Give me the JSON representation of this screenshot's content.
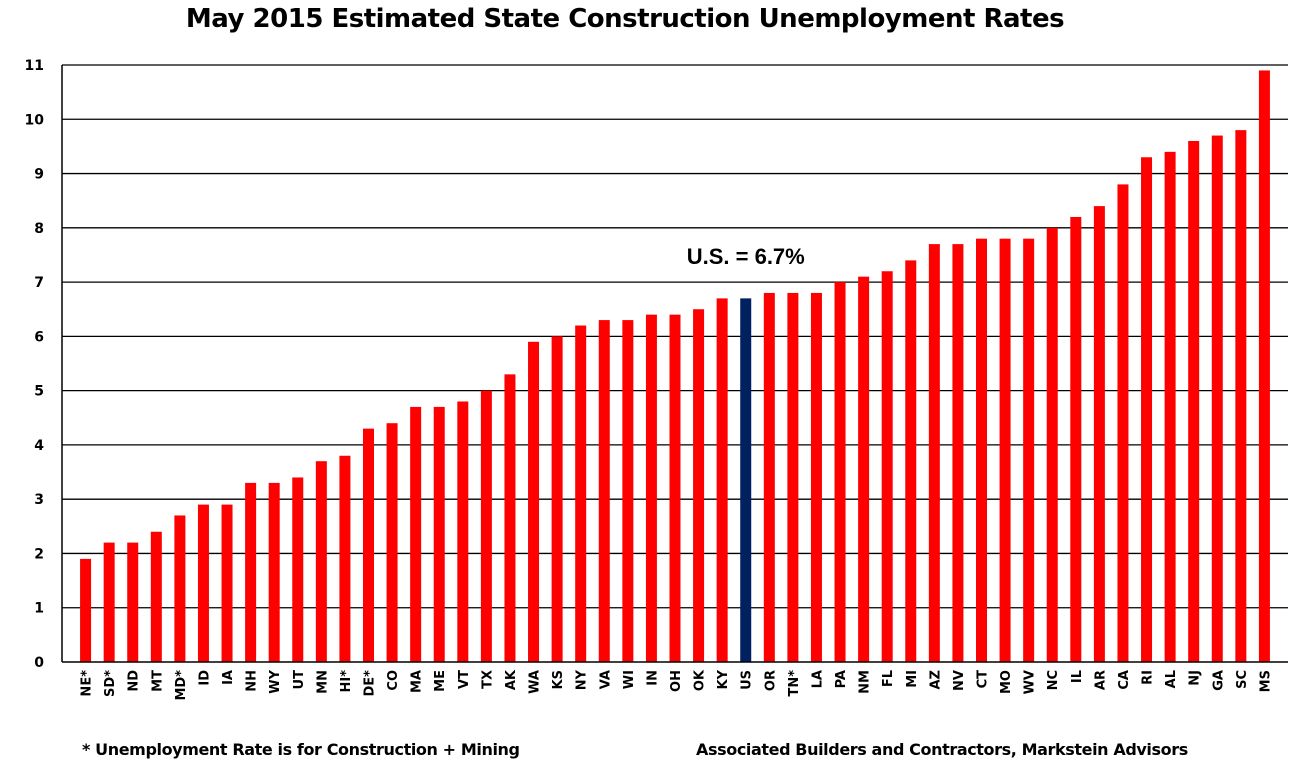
{
  "chart_data": {
    "type": "bar",
    "title": "May 2015 Estimated State Construction Unemployment Rates",
    "xlabel": "",
    "ylabel": "",
    "ylim": [
      0,
      11
    ],
    "yticks": [
      0,
      1,
      2,
      3,
      4,
      5,
      6,
      7,
      8,
      9,
      10,
      11
    ],
    "grid": true,
    "categories": [
      "NE*",
      "SD*",
      "ND",
      "MT",
      "MD*",
      "ID",
      "IA",
      "NH",
      "WY",
      "UT",
      "MN",
      "HI*",
      "DE*",
      "CO",
      "MA",
      "ME",
      "VT",
      "TX",
      "AK",
      "WA",
      "KS",
      "NY",
      "VA",
      "WI",
      "IN",
      "OH",
      "OK",
      "KY",
      "US",
      "OR",
      "TN*",
      "LA",
      "PA",
      "NM",
      "FL",
      "MI",
      "AZ",
      "NV",
      "CT",
      "MO",
      "WV",
      "NC",
      "IL",
      "AR",
      "CA",
      "RI",
      "AL",
      "NJ",
      "GA",
      "SC",
      "MS"
    ],
    "values": [
      1.9,
      2.2,
      2.2,
      2.4,
      2.7,
      2.9,
      2.9,
      3.3,
      3.3,
      3.4,
      3.7,
      3.8,
      4.3,
      4.4,
      4.7,
      4.7,
      4.8,
      5.0,
      5.3,
      5.9,
      6.0,
      6.2,
      6.3,
      6.3,
      6.4,
      6.4,
      6.5,
      6.7,
      6.7,
      6.8,
      6.8,
      6.8,
      7.0,
      7.1,
      7.2,
      7.4,
      7.7,
      7.7,
      7.8,
      7.8,
      7.8,
      8.0,
      8.2,
      8.4,
      8.8,
      9.3,
      9.4,
      9.6,
      9.7,
      9.8,
      10.9
    ],
    "highlight_category": "US",
    "annotation": "U.S. = 6.7%",
    "colors": {
      "bar": "#ff0000",
      "highlight": "#002060",
      "grid": "#000000"
    }
  },
  "footnotes": {
    "left": "* Unemployment Rate is for Construction + Mining",
    "right": "Associated Builders and Contractors, Markstein Advisors"
  }
}
